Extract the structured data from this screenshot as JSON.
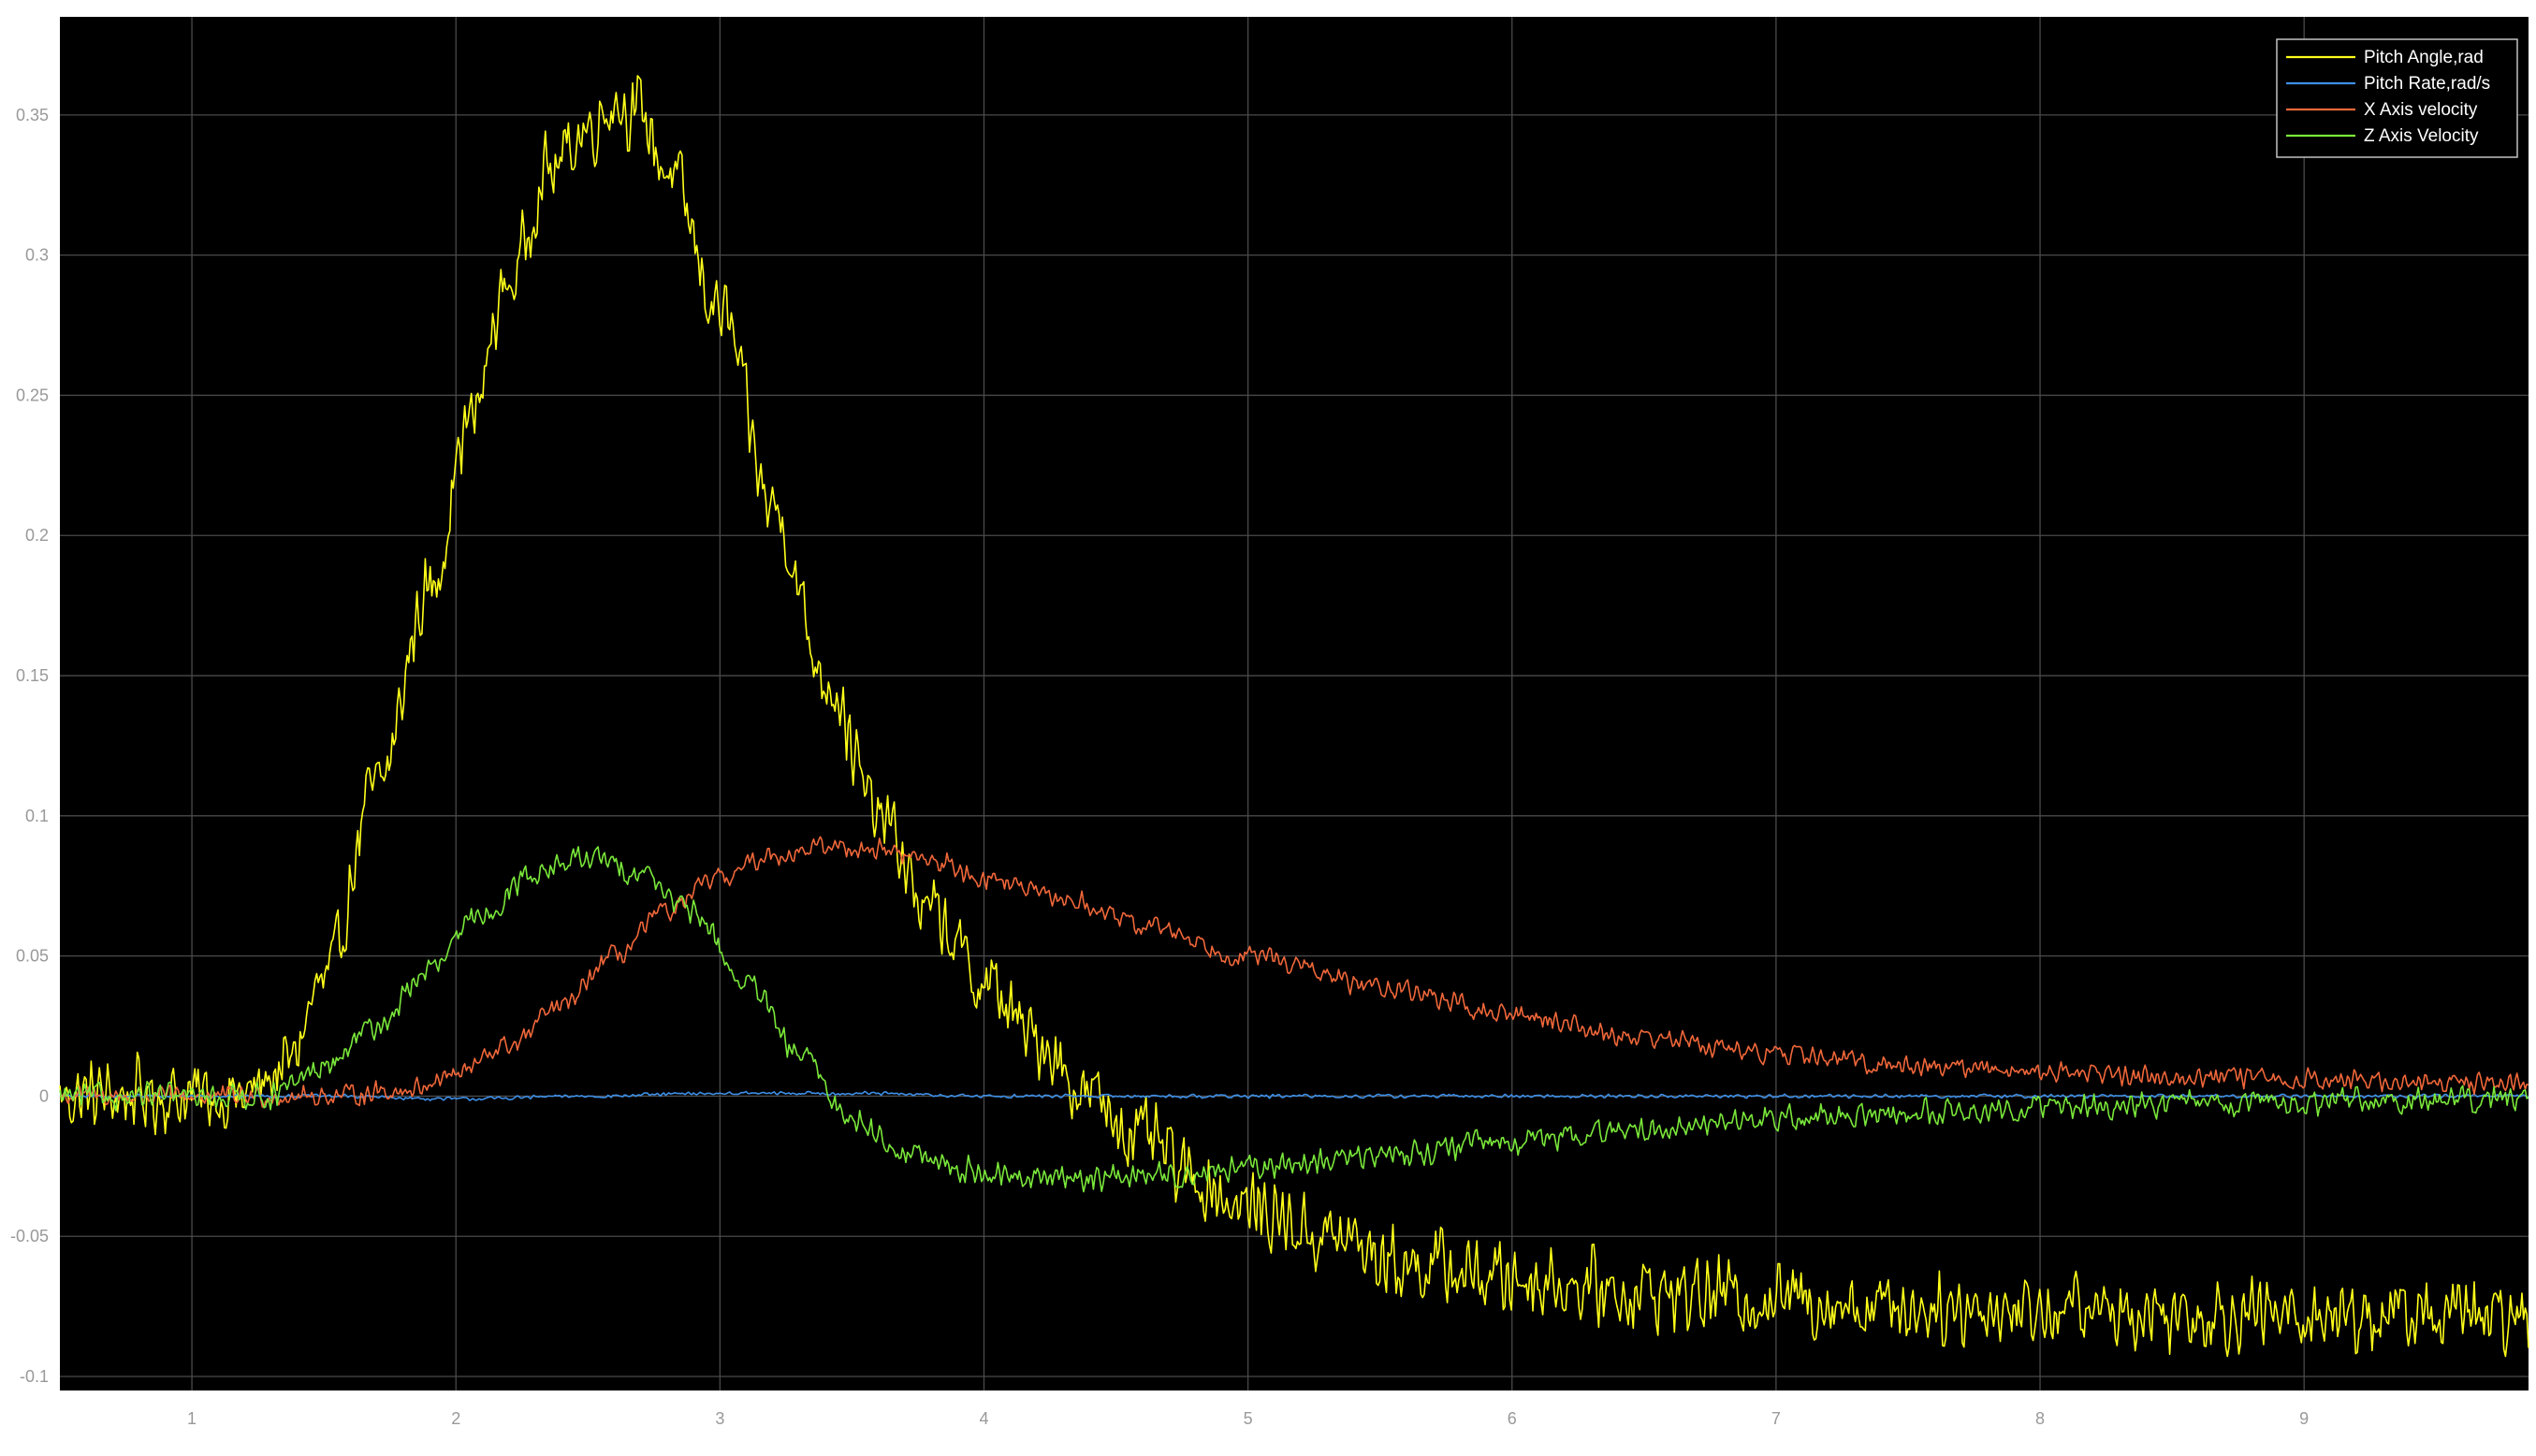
{
  "chart_data": {
    "type": "line",
    "title": "",
    "xlabel": "",
    "ylabel": "",
    "xlim": [
      0.5,
      9.85
    ],
    "ylim": [
      -0.105,
      0.385
    ],
    "grid": true,
    "legend_position": "top-right",
    "background": "#000000",
    "grid_color": "#4a4a4a",
    "axis_text_color": "#999999",
    "x_ticks": [
      "1",
      "2",
      "3",
      "4",
      "5",
      "6",
      "7",
      "8",
      "9"
    ],
    "y_ticks": [
      "-0.1",
      "-0.05",
      "0",
      "0.05",
      "0.1",
      "0.15",
      "0.2",
      "0.25",
      "0.3",
      "0.35"
    ],
    "series": [
      {
        "name": "Pitch Angle,rad",
        "color": "#ffff1a",
        "x": [
          0.5,
          0.8,
          1.0,
          1.2,
          1.35,
          1.5,
          1.7,
          1.9,
          2.05,
          2.2,
          2.35,
          2.5,
          2.6,
          2.7,
          2.8,
          3.0,
          3.2,
          3.4,
          3.6,
          3.8,
          4.0,
          4.2,
          4.4,
          4.6,
          4.8,
          5.0,
          5.3,
          5.6,
          6.0,
          6.5,
          7.0,
          7.5,
          8.0,
          8.5,
          9.0,
          9.5,
          9.85
        ],
        "y": [
          0.0,
          0.0,
          0.0,
          0.0,
          0.01,
          0.04,
          0.11,
          0.18,
          0.24,
          0.29,
          0.33,
          0.345,
          0.355,
          0.35,
          0.33,
          0.28,
          0.21,
          0.15,
          0.1,
          0.065,
          0.04,
          0.02,
          0.0,
          -0.015,
          -0.03,
          -0.04,
          -0.05,
          -0.06,
          -0.065,
          -0.07,
          -0.072,
          -0.075,
          -0.076,
          -0.077,
          -0.078,
          -0.078,
          -0.08
        ],
        "noise": 0.016
      },
      {
        "name": "Pitch Rate,rad/s",
        "color": "#3d8ee6",
        "x": [
          0.5,
          1.5,
          2.0,
          2.5,
          3.0,
          3.5,
          4.0,
          5.0,
          6.0,
          7.0,
          8.0,
          9.0,
          9.85
        ],
        "y": [
          0.0,
          0.0,
          -0.001,
          0.0,
          0.001,
          0.001,
          0.0,
          0.0,
          0.0,
          0.0,
          0.0,
          0.0,
          0.0
        ],
        "noise": 0.0008
      },
      {
        "name": "X Axis velocity",
        "color": "#f0673a",
        "x": [
          0.5,
          1.0,
          1.5,
          1.8,
          2.0,
          2.2,
          2.4,
          2.6,
          2.8,
          3.0,
          3.2,
          3.4,
          3.6,
          3.8,
          4.0,
          4.3,
          4.6,
          5.0,
          5.5,
          6.0,
          6.5,
          7.0,
          7.5,
          8.0,
          8.5,
          9.0,
          9.5,
          9.85
        ],
        "y": [
          0.0,
          0.0,
          0.0,
          0.002,
          0.008,
          0.018,
          0.032,
          0.05,
          0.066,
          0.078,
          0.086,
          0.089,
          0.088,
          0.084,
          0.078,
          0.07,
          0.061,
          0.05,
          0.039,
          0.029,
          0.021,
          0.015,
          0.011,
          0.009,
          0.007,
          0.006,
          0.005,
          0.005
        ],
        "noise": 0.0045
      },
      {
        "name": "Z Axis Velocity",
        "color": "#7ae83a",
        "x": [
          0.5,
          1.0,
          1.3,
          1.5,
          1.7,
          1.9,
          2.1,
          2.3,
          2.5,
          2.7,
          2.9,
          3.1,
          3.3,
          3.5,
          3.7,
          3.9,
          4.1,
          4.4,
          4.7,
          5.0,
          5.3,
          5.6,
          6.0,
          6.5,
          7.0,
          7.5,
          8.0,
          8.5,
          9.0,
          9.85
        ],
        "y": [
          0.0,
          0.0,
          0.0,
          0.01,
          0.025,
          0.045,
          0.065,
          0.08,
          0.085,
          0.08,
          0.065,
          0.04,
          0.015,
          -0.008,
          -0.02,
          -0.026,
          -0.029,
          -0.029,
          -0.028,
          -0.026,
          -0.023,
          -0.02,
          -0.016,
          -0.012,
          -0.008,
          -0.006,
          -0.004,
          -0.003,
          -0.002,
          -0.001
        ],
        "noise": 0.0055
      }
    ]
  }
}
